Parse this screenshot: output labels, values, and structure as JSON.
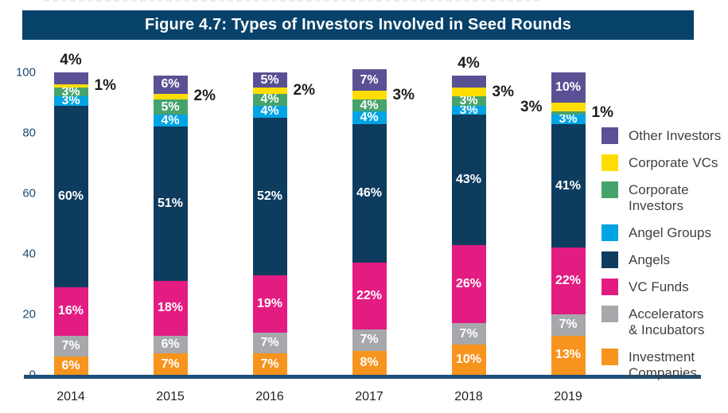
{
  "figure": {
    "title": "Figure 4.7: Types of Investors Involved in Seed Rounds"
  },
  "colors": {
    "title_bg": "#07426b",
    "title_text": "#ffffff",
    "axis_line": "#1d4e77",
    "axis_label": "#1b4a72",
    "year_label": "#231f20",
    "legend_text": "#414042",
    "label_inside": "#ffffff",
    "label_outside": "#1d1d1b"
  },
  "chart_data": {
    "type": "bar",
    "stacked": true,
    "title": "Figure 4.7: Types of Investors Involved in Seed Rounds",
    "categories": [
      "2014",
      "2015",
      "2016",
      "2017",
      "2018",
      "2019"
    ],
    "xlabel": "",
    "ylabel": "",
    "ylim": [
      0,
      100
    ],
    "yticks": [
      0,
      20,
      40,
      60,
      80,
      100
    ],
    "grid": false,
    "legend_position": "right",
    "series": [
      {
        "name": "Investment Companies",
        "color": "#f7941e",
        "values": [
          6,
          7,
          7,
          8,
          10,
          13
        ],
        "labels": [
          "6%",
          "7%",
          "7%",
          "8%",
          "10%",
          "13%"
        ],
        "placements": [
          "inside",
          "inside",
          "inside",
          "inside",
          "inside",
          "inside"
        ]
      },
      {
        "name": "Accelerators & Incubators",
        "color": "#a6a8ab",
        "values": [
          7,
          6,
          7,
          7,
          7,
          7
        ],
        "labels": [
          "7%",
          "6%",
          "7%",
          "7%",
          "7%",
          "7%"
        ],
        "placements": [
          "inside",
          "inside",
          "inside",
          "inside",
          "inside",
          "inside"
        ]
      },
      {
        "name": "VC Funds",
        "color": "#e31c82",
        "values": [
          16,
          18,
          19,
          22,
          26,
          22
        ],
        "labels": [
          "16%",
          "18%",
          "19%",
          "22%",
          "26%",
          "22%"
        ],
        "placements": [
          "inside",
          "inside",
          "inside",
          "inside",
          "inside",
          "inside"
        ]
      },
      {
        "name": "Angels",
        "color": "#0e3c5f",
        "values": [
          60,
          51,
          52,
          46,
          43,
          41
        ],
        "labels": [
          "60%",
          "51%",
          "52%",
          "46%",
          "43%",
          "41%"
        ],
        "placements": [
          "inside",
          "inside",
          "inside",
          "inside",
          "inside",
          "inside"
        ]
      },
      {
        "name": "Angel Groups",
        "color": "#00a4e4",
        "values": [
          3,
          4,
          4,
          4,
          3,
          3
        ],
        "labels": [
          "3%",
          "4%",
          "4%",
          "4%",
          "3%",
          "3%"
        ],
        "placements": [
          "inside",
          "inside",
          "inside",
          "inside",
          "inside",
          "inside"
        ]
      },
      {
        "name": "Corporate Investors",
        "color": "#47a36c",
        "values": [
          3,
          5,
          4,
          4,
          3,
          1
        ],
        "labels": [
          "3%",
          "5%",
          "4%",
          "4%",
          "3%",
          "1%"
        ],
        "placements": [
          "inside",
          "inside",
          "inside",
          "inside",
          "inside",
          "right"
        ]
      },
      {
        "name": "Corporate VCs",
        "color": "#ffdd00",
        "values": [
          1,
          2,
          2,
          3,
          3,
          3
        ],
        "labels": [
          "1%",
          "2%",
          "2%",
          "3%",
          "3%",
          "3%"
        ],
        "placements": [
          "right",
          "right",
          "right",
          "right",
          "right",
          "left"
        ]
      },
      {
        "name": "Other Investors",
        "color": "#5a5195",
        "values": [
          4,
          6,
          5,
          7,
          4,
          10
        ],
        "labels": [
          "4%",
          "6%",
          "5%",
          "7%",
          "4%",
          "10%"
        ],
        "placements": [
          "above",
          "inside",
          "inside",
          "inside",
          "above",
          "inside"
        ]
      }
    ]
  },
  "legend": {
    "items": [
      {
        "label": "Other Investors",
        "color": "#5a5195"
      },
      {
        "label": "Corporate VCs",
        "color": "#ffdd00"
      },
      {
        "label": "Corporate\nInvestors",
        "color": "#47a36c"
      },
      {
        "label": "Angel Groups",
        "color": "#00a4e4"
      },
      {
        "label": "Angels",
        "color": "#0e3c5f"
      },
      {
        "label": "VC Funds",
        "color": "#e31c82"
      },
      {
        "label": "Accelerators\n& Incubators",
        "color": "#a6a8ab"
      },
      {
        "label": "Investment\nCompanies",
        "color": "#f7941e"
      }
    ]
  }
}
